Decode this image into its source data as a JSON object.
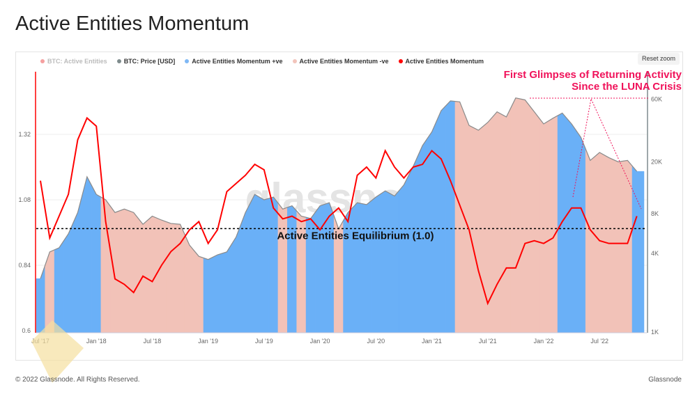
{
  "page": {
    "title": "Active Entities Momentum",
    "reset_zoom": "Reset zoom",
    "copyright": "© 2022 Glassnode. All Rights Reserved.",
    "brand": "Glassnode",
    "watermark": "glassnode"
  },
  "legend": [
    {
      "label": "BTC: Active Entities",
      "color": "#f5a0a0",
      "faded": true
    },
    {
      "label": "BTC: Price [USD]",
      "color": "#7f8c8d"
    },
    {
      "label": "Active Entities Momentum +ve",
      "color": "#7fb8f5"
    },
    {
      "label": "Active Entities Momentum -ve",
      "color": "#f2c4bb"
    },
    {
      "label": "Active Entities Momentum",
      "color": "#ff0000"
    }
  ],
  "annotations": {
    "luna_line1": "First Glimpses of Returning Activity",
    "luna_line2": "Since the LUNA Crisis",
    "equilibrium": "Active Entities Equilibrium (1.0)",
    "equilibrium_value": 1.0
  },
  "chart_data": {
    "type": "line",
    "title": "Active Entities Momentum",
    "x_start": "Jul 2017",
    "x_step": "month",
    "x_ticks": [
      "Jul '17",
      "Jan '18",
      "Jul '18",
      "Jan '19",
      "Jul '19",
      "Jan '20",
      "Jul '20",
      "Jan '21",
      "Jul '21",
      "Jan '22",
      "Jul '22"
    ],
    "y_left": {
      "ticks": [
        "0.6",
        "0.84",
        "1.08",
        "1.32"
      ],
      "range": [
        0.6,
        1.56
      ]
    },
    "y_right": {
      "scale": "log",
      "ticks": [
        "1K",
        "4K",
        "8K",
        "20K",
        "60K"
      ],
      "tick_values": [
        1000,
        4000,
        8000,
        20000,
        60000
      ],
      "range": [
        1000,
        100000
      ]
    },
    "momentum": [
      1.15,
      0.94,
      1.02,
      1.1,
      1.3,
      1.38,
      1.35,
      1.0,
      0.79,
      0.77,
      0.74,
      0.8,
      0.78,
      0.84,
      0.89,
      0.92,
      0.97,
      1.0,
      0.92,
      0.97,
      1.11,
      1.14,
      1.17,
      1.21,
      1.19,
      1.05,
      1.01,
      1.02,
      1.0,
      1.01,
      0.97,
      1.02,
      1.05,
      1.0,
      1.17,
      1.2,
      1.16,
      1.26,
      1.2,
      1.16,
      1.2,
      1.21,
      1.26,
      1.23,
      1.15,
      1.06,
      0.97,
      0.82,
      0.7,
      0.77,
      0.83,
      0.83,
      0.92,
      0.93,
      0.92,
      0.94,
      1.0,
      1.05,
      1.05,
      0.97,
      0.93,
      0.92,
      0.92,
      0.92,
      1.02
    ],
    "price": [
      2500,
      4000,
      4300,
      5500,
      8000,
      15000,
      11000,
      10000,
      8000,
      8500,
      8000,
      6500,
      7500,
      7000,
      6600,
      6500,
      4500,
      3700,
      3500,
      3800,
      4000,
      5200,
      8000,
      11000,
      10000,
      10500,
      8500,
      9000,
      7500,
      7200,
      9000,
      9500,
      6000,
      8000,
      9500,
      9200,
      10500,
      11700,
      10700,
      13000,
      18000,
      26000,
      33000,
      48000,
      57000,
      56000,
      37000,
      34000,
      39000,
      47000,
      43000,
      60000,
      58000,
      47000,
      38000,
      42000,
      46000,
      38000,
      30000,
      20000,
      23000,
      21000,
      19500,
      20000,
      16500
    ],
    "regime": [
      "+",
      "-",
      "+",
      "+",
      "+",
      "+",
      "+",
      "-",
      "-",
      "-",
      "-",
      "-",
      "-",
      "-",
      "-",
      "-",
      "-",
      "-",
      "+",
      "+",
      "+",
      "+",
      "+",
      "+",
      "+",
      "+",
      "-",
      "+",
      "-",
      "+",
      "+",
      "+",
      "-",
      "+",
      "+",
      "+",
      "+",
      "+",
      "+",
      "+",
      "+",
      "+",
      "+",
      "+",
      "+",
      "-",
      "-",
      "-",
      "-",
      "-",
      "-",
      "-",
      "-",
      "-",
      "-",
      "-",
      "+",
      "+",
      "+",
      "-",
      "-",
      "-",
      "-",
      "-",
      "+"
    ]
  }
}
